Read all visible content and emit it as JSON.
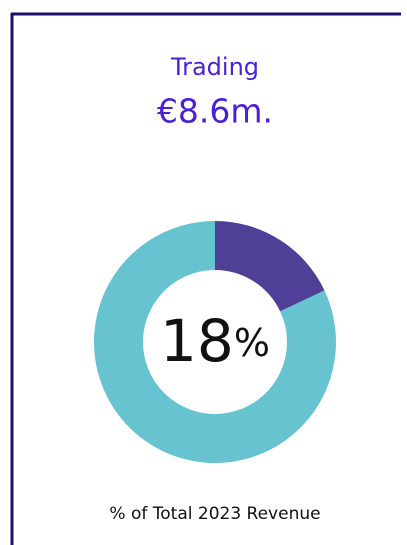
{
  "chart_data": {
    "type": "donut",
    "title": "Trading",
    "subtitle": "€8.6m.",
    "values": [
      18,
      82
    ],
    "colors": [
      "#4f3f96",
      "#68c3d1"
    ],
    "unit": "%",
    "caption": "% of Total 2023 Revenue"
  }
}
